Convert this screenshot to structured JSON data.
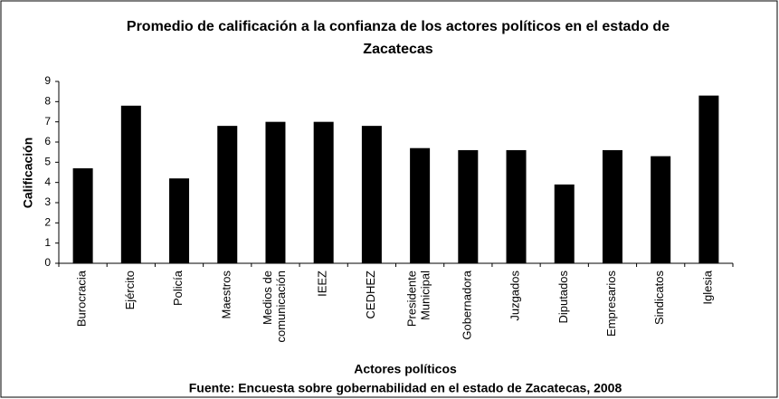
{
  "chart_data": {
    "type": "bar",
    "title": [
      "Promedio de calificación a la confianza de los actores políticos en el estado de",
      "Zacatecas"
    ],
    "x_label": "Actores políticos",
    "y_label": "Calificación",
    "source": "Fuente: Encuesta sobre gobernabilidad en el estado de Zacatecas, 2008",
    "categories": [
      "Burocracia",
      "Ejército",
      "Policía",
      "Maestros",
      "Medios de\ncomunicación",
      "IEEZ",
      "CEDHEZ",
      "Presidente\nMunicipal",
      "Gobernadora",
      "Juzgados",
      "Diputados",
      "Empresarios",
      "Sindicatos",
      "Iglesia"
    ],
    "values": [
      4.7,
      7.8,
      4.2,
      6.8,
      7.0,
      7.0,
      6.8,
      5.7,
      5.6,
      5.6,
      3.9,
      5.6,
      5.3,
      8.3
    ],
    "color": "#000000",
    "ylim": [
      0,
      9
    ],
    "yticks": [
      0,
      1,
      2,
      3,
      4,
      5,
      6,
      7,
      8,
      9
    ],
    "grid": false
  }
}
